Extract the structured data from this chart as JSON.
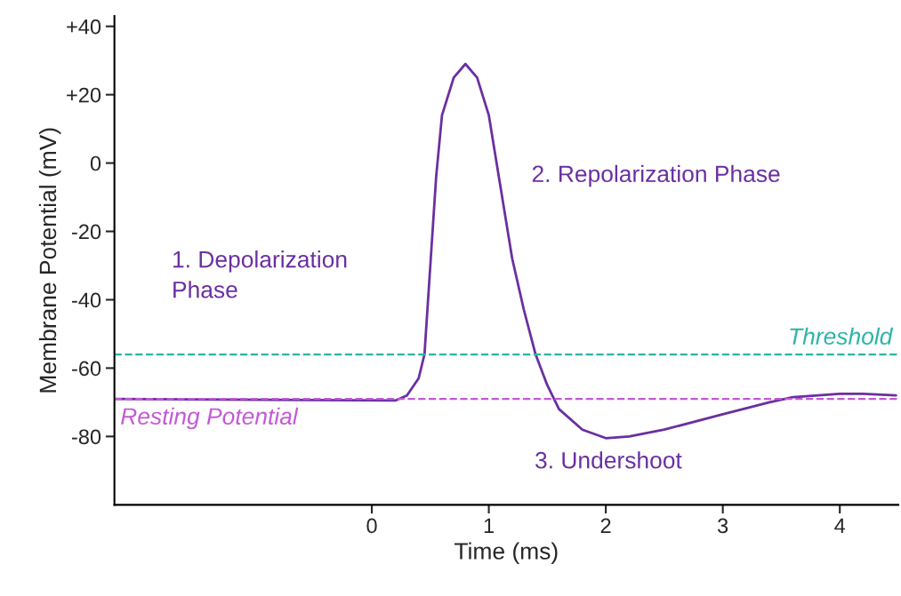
{
  "chart_data": {
    "type": "line",
    "xlabel": "Time (ms)",
    "ylabel": "Membrane Potential (mV)",
    "xlim": [
      -2.2,
      4.5
    ],
    "xticks": [
      0,
      1,
      2,
      3,
      4
    ],
    "ylim": [
      -100,
      43
    ],
    "yticks": [
      {
        "value": 40,
        "label": "+40"
      },
      {
        "value": 20,
        "label": "+20"
      },
      0,
      -20,
      -40,
      -60,
      -80
    ],
    "grid": false,
    "legend": false,
    "marker": "none",
    "line_style": "solid",
    "series": [
      {
        "color": "#6a2fa0",
        "x": [
          -2.2,
          0.2,
          0.3,
          0.4,
          0.45,
          0.5,
          0.55,
          0.6,
          0.7,
          0.8,
          0.9,
          1.0,
          1.1,
          1.2,
          1.3,
          1.4,
          1.5,
          1.6,
          1.8,
          2.0,
          2.2,
          2.5,
          3.0,
          3.4,
          3.6,
          4.0,
          4.2,
          4.48
        ],
        "values": [
          -69,
          -69.5,
          -68,
          -63,
          -56,
          -30,
          -4,
          14,
          25,
          29,
          25,
          14,
          -7,
          -28,
          -43,
          -56,
          -65,
          -72,
          -78,
          -80.5,
          -80,
          -78,
          -73.5,
          -70,
          -68.5,
          -67.5,
          -67.5,
          -68
        ]
      }
    ],
    "ref_lines": [
      {
        "axis": "y",
        "value": -56,
        "label": "Threshold",
        "color": "#2ab5a8",
        "line_style": "dashed"
      },
      {
        "axis": "y",
        "value": -69,
        "label": "Resting Potential",
        "color": "#c359d6",
        "line_style": "dashed"
      }
    ],
    "annotations": [
      "1. Depolarization\nPhase",
      "2. Repolarization Phase",
      "3. Undershoot"
    ]
  }
}
